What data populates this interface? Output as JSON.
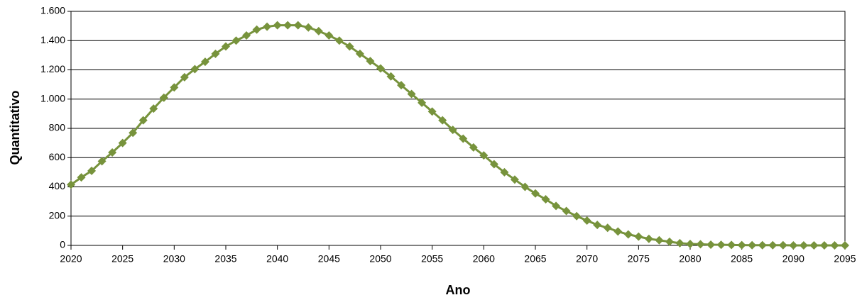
{
  "chart_data": {
    "type": "line",
    "x_label": "Ano",
    "y_label": "Quantitativo",
    "x": [
      2020,
      2021,
      2022,
      2023,
      2024,
      2025,
      2026,
      2027,
      2028,
      2029,
      2030,
      2031,
      2032,
      2033,
      2034,
      2035,
      2036,
      2037,
      2038,
      2039,
      2040,
      2041,
      2042,
      2043,
      2044,
      2045,
      2046,
      2047,
      2048,
      2049,
      2050,
      2051,
      2052,
      2053,
      2054,
      2055,
      2056,
      2057,
      2058,
      2059,
      2060,
      2061,
      2062,
      2063,
      2064,
      2065,
      2066,
      2067,
      2068,
      2069,
      2070,
      2071,
      2072,
      2073,
      2074,
      2075,
      2076,
      2077,
      2078,
      2079,
      2080,
      2081,
      2082,
      2083,
      2084,
      2085,
      2086,
      2087,
      2088,
      2089,
      2090,
      2091,
      2092,
      2093,
      2094,
      2095
    ],
    "series": [
      {
        "color": "#77933c",
        "values": [
          415,
          465,
          510,
          575,
          635,
          700,
          770,
          855,
          935,
          1010,
          1080,
          1150,
          1205,
          1255,
          1310,
          1360,
          1400,
          1435,
          1475,
          1495,
          1505,
          1505,
          1505,
          1490,
          1465,
          1435,
          1400,
          1360,
          1310,
          1260,
          1210,
          1155,
          1095,
          1035,
          975,
          915,
          855,
          790,
          730,
          670,
          615,
          555,
          500,
          450,
          400,
          355,
          315,
          270,
          235,
          200,
          170,
          140,
          120,
          95,
          75,
          60,
          45,
          35,
          25,
          15,
          10,
          8,
          5,
          4,
          3,
          2,
          1,
          1,
          1,
          1,
          0,
          0,
          0,
          0,
          0,
          0
        ]
      }
    ],
    "xlim": [
      2020,
      2095
    ],
    "xticks": [
      2020,
      2025,
      2030,
      2035,
      2040,
      2045,
      2050,
      2055,
      2060,
      2065,
      2070,
      2075,
      2080,
      2085,
      2090,
      2095
    ],
    "ylim": [
      0,
      1600
    ],
    "yticks": [
      0,
      200,
      400,
      600,
      800,
      {
        "value": 1000,
        "label": "1.000"
      },
      {
        "value": 1200,
        "label": "1.200"
      },
      {
        "value": 1400,
        "label": "1.400"
      },
      {
        "value": 1600,
        "label": "1.600"
      }
    ],
    "grid": true
  }
}
